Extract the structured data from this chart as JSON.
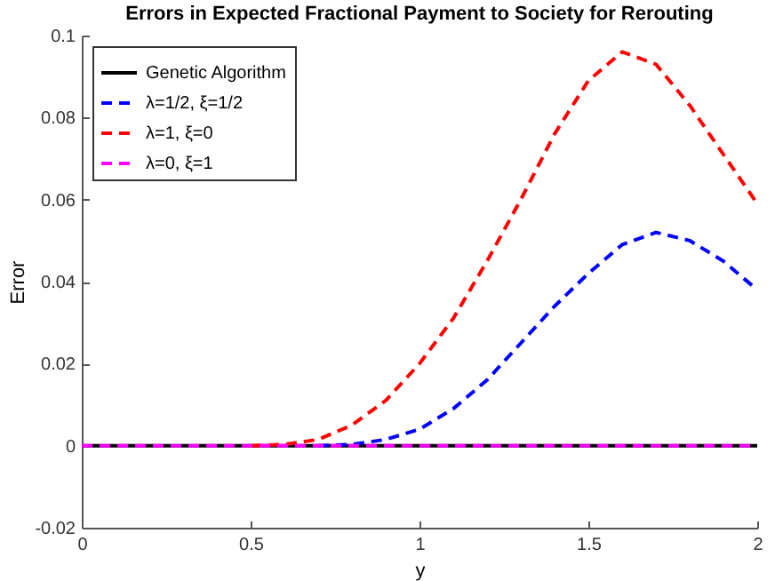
{
  "chart_data": {
    "type": "line",
    "title": "Errors in Expected Fractional Payment to Society for Rerouting",
    "xlabel": "y",
    "ylabel": "Error",
    "x": [
      0,
      0.1,
      0.2,
      0.3,
      0.4,
      0.5,
      0.6,
      0.7,
      0.8,
      0.9,
      1.0,
      1.1,
      1.2,
      1.3,
      1.4,
      1.5,
      1.6,
      1.7,
      1.8,
      1.9,
      2.0
    ],
    "series": [
      {
        "name": "Genetic Algorithm",
        "color": "#000000",
        "line_style": "solid",
        "values": [
          0,
          0,
          0,
          0,
          0,
          0,
          0,
          0,
          0,
          0,
          0,
          0,
          0,
          0,
          0,
          0,
          0,
          0,
          0,
          0,
          0
        ]
      },
      {
        "name": "λ=1/2, ξ=1/2",
        "color": "#0000ff",
        "line_style": "dashed",
        "values": [
          null,
          null,
          null,
          null,
          null,
          null,
          null,
          0,
          0.0003,
          0.0015,
          0.004,
          0.009,
          0.016,
          0.025,
          0.034,
          0.042,
          0.049,
          0.052,
          0.05,
          0.045,
          0.038
        ]
      },
      {
        "name": "λ=1, ξ=0",
        "color": "#ff0000",
        "line_style": "dashed",
        "values": [
          null,
          null,
          null,
          null,
          null,
          0,
          0.0003,
          0.0015,
          0.005,
          0.011,
          0.02,
          0.031,
          0.045,
          0.06,
          0.076,
          0.089,
          0.096,
          0.093,
          0.083,
          0.071,
          0.059
        ]
      },
      {
        "name": "λ=0, ξ=1",
        "color": "#ff00ff",
        "line_style": "dashed",
        "values": [
          0,
          0,
          0,
          0,
          0,
          0,
          0,
          0,
          0,
          0,
          0,
          0,
          0,
          0,
          0,
          0,
          0,
          0,
          0,
          0,
          0
        ]
      }
    ],
    "xlim": [
      0,
      2
    ],
    "xticks": [
      0,
      0.5,
      1,
      1.5,
      2
    ],
    "ylim": [
      -0.02,
      0.1
    ],
    "yticks": [
      -0.02,
      0,
      0.02,
      0.04,
      0.06,
      0.08,
      0.1
    ],
    "legend": "top left",
    "grid": false
  }
}
